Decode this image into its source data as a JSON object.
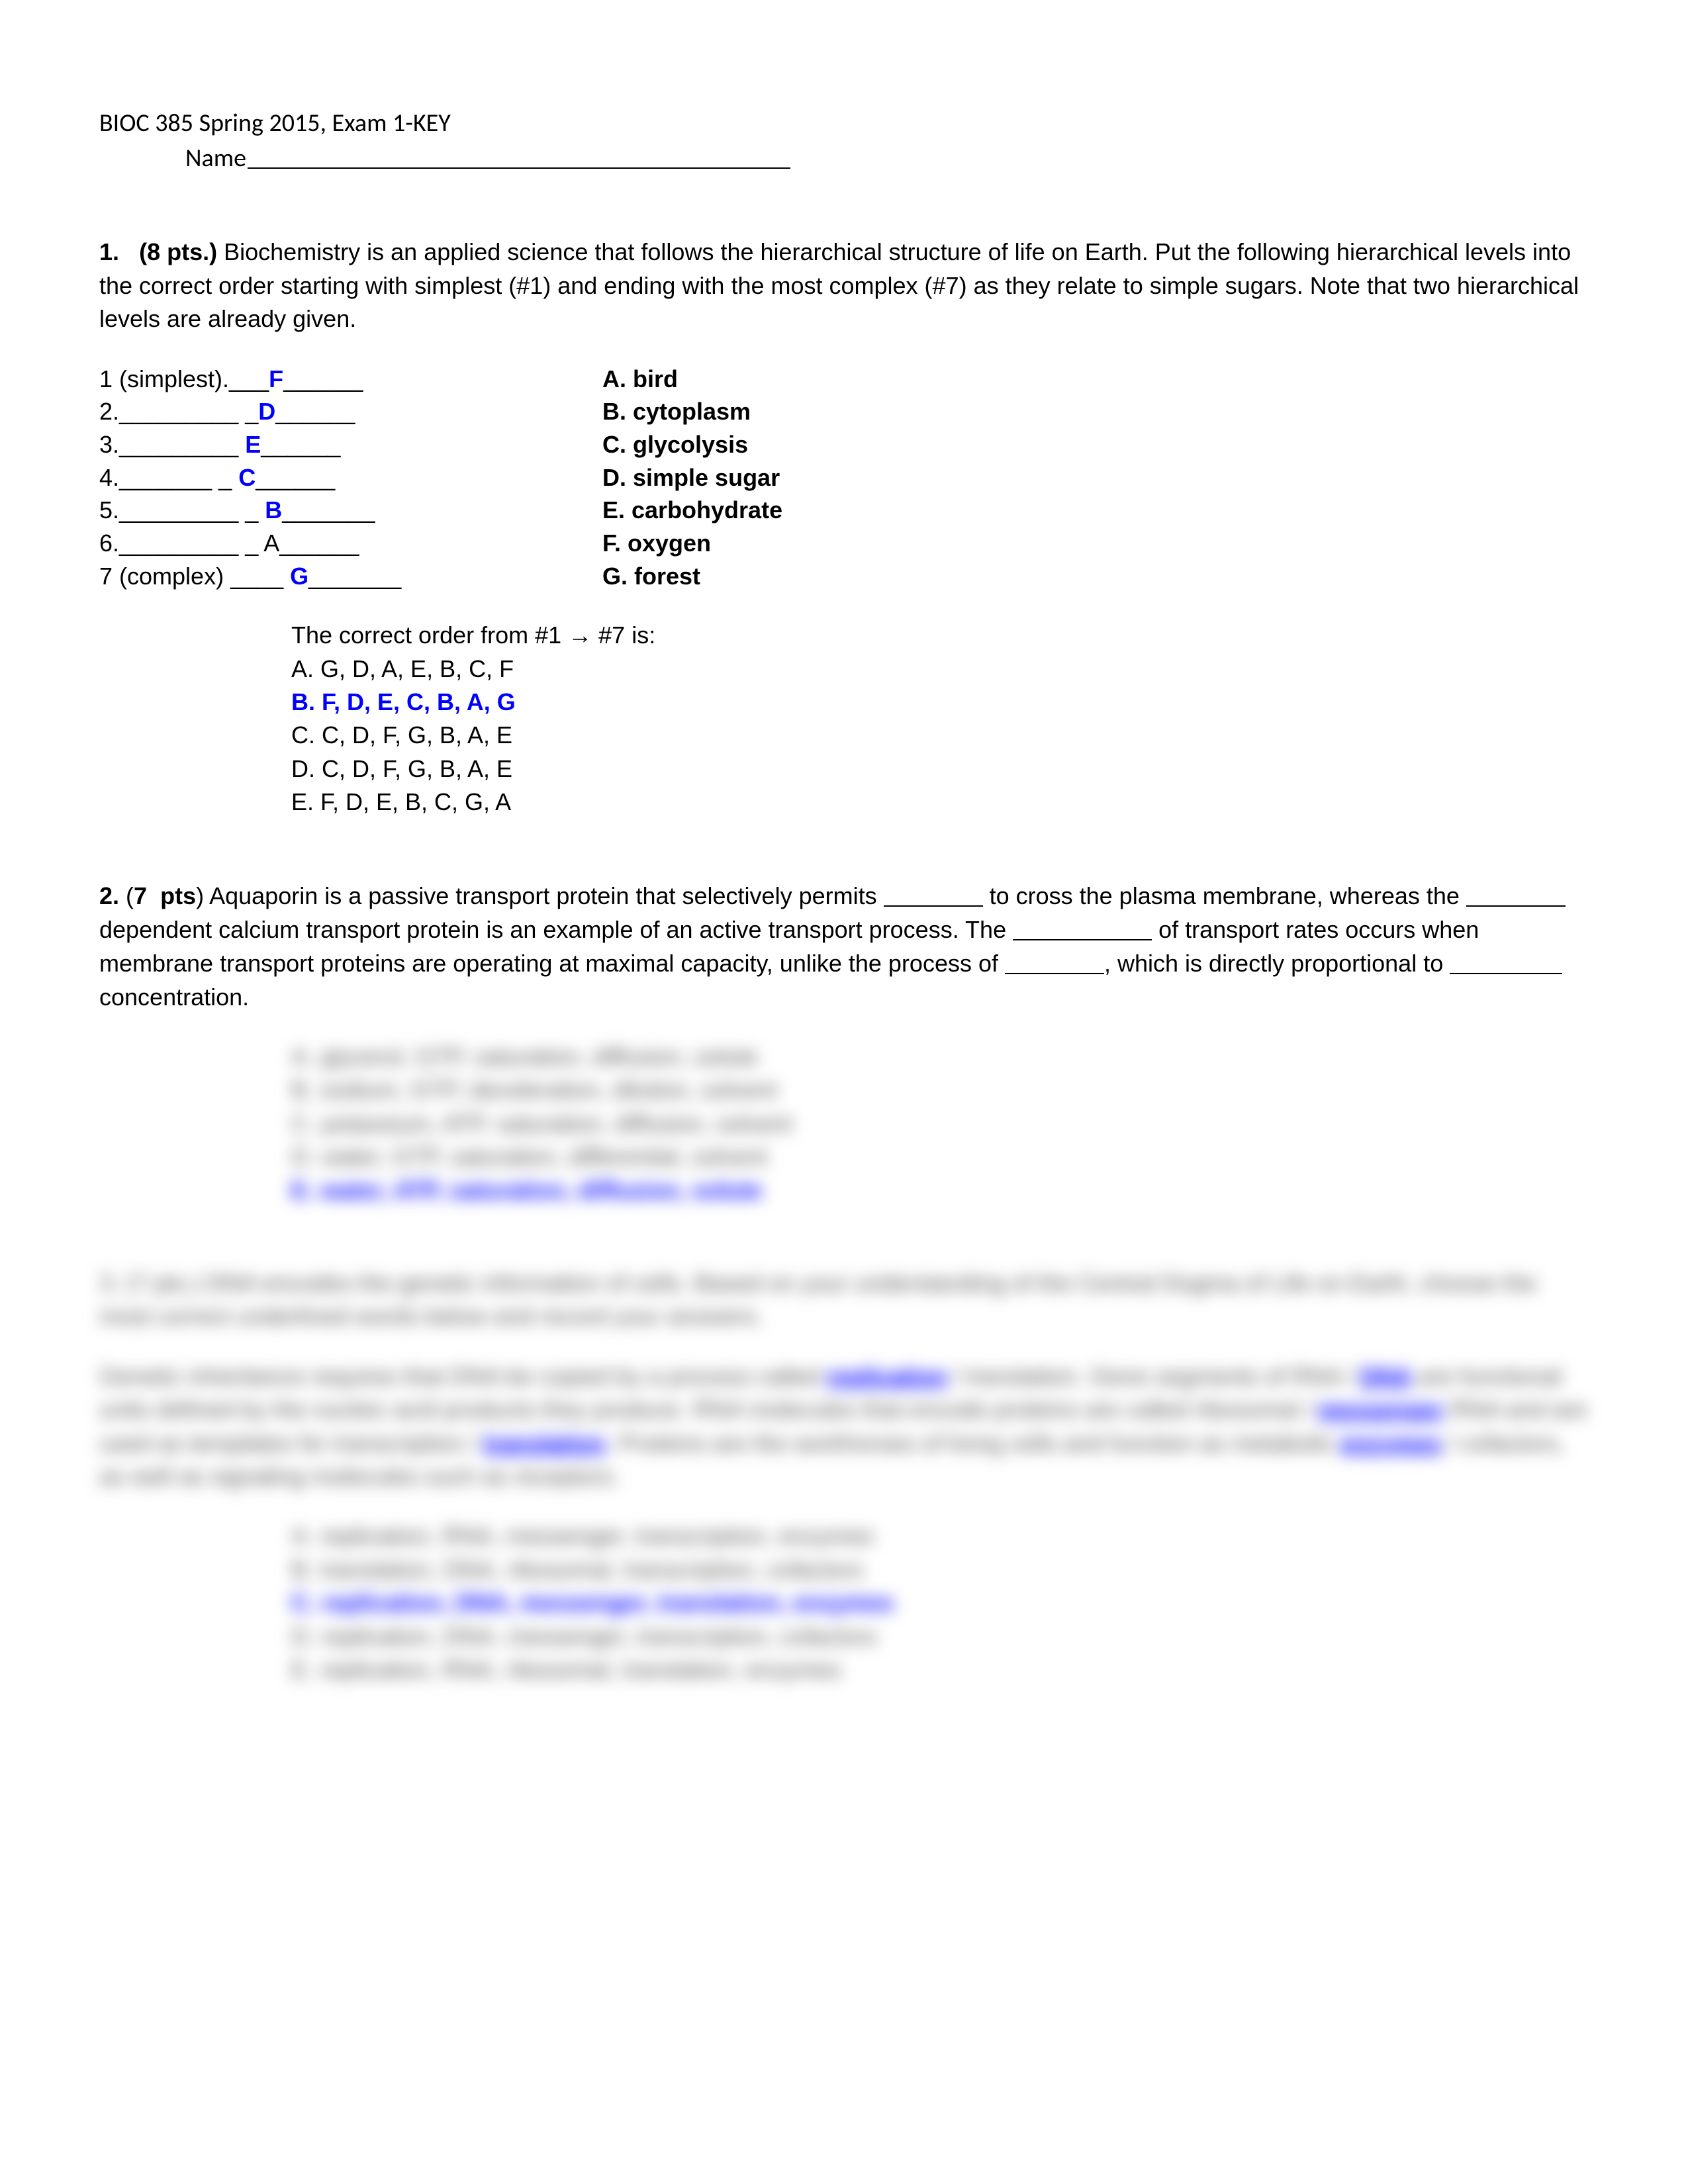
{
  "header": {
    "course_line": "BIOC 385 Spring 2015, Exam 1-KEY",
    "name_label": "Name"
  },
  "q1": {
    "number": "1.",
    "points": "(8 pts.)",
    "prompt": " Biochemistry is an applied science that follows the hierarchical structure of life on Earth.  Put the following hierarchical levels into the correct order starting with simplest (#1) and ending with the most complex (#7) as they relate to simple sugars.  Note that two hierarchical levels are already given.",
    "hierarchy_rows": [
      {
        "left_pre": "1 (simplest).___",
        "ans": "F",
        "left_post": "______",
        "right": "A. bird"
      },
      {
        "left_pre": "2._________ _",
        "ans": "D",
        "left_post": "______",
        "right": "B. cytoplasm"
      },
      {
        "left_pre": "3._________ ",
        "ans": "E",
        "left_post": "______",
        "right": "C. glycolysis"
      },
      {
        "left_pre": "4._______ _ ",
        "ans": "C",
        "left_post": "______",
        "right": "D. simple sugar"
      },
      {
        "left_pre": "5._________ _ ",
        "ans": "B",
        "left_post": "_______",
        "right": "E. carbohydrate"
      },
      {
        "left_pre": "6._________ _ A",
        "ans": "",
        "left_post": "______",
        "right": "F. oxygen"
      },
      {
        "left_pre": "7 (complex) ____ ",
        "ans": "G",
        "left_post": "_______",
        "right": "G. forest"
      }
    ],
    "order_line_pre": "The correct order from #1 ",
    "arrow": "→",
    "order_line_post": " #7 is:",
    "options": [
      {
        "text": "A.  G, D, A, E, B, C, F",
        "correct": false
      },
      {
        "text": "B.  F, D, E, C, B, A, G",
        "correct": true
      },
      {
        "text": "C.  C, D, F, G, B, A, E",
        "correct": false
      },
      {
        "text": "D.  C, D, F, G, B, A, E",
        "correct": false
      },
      {
        "text": "E.  F, D, E, B, C, G, A",
        "correct": false
      }
    ]
  },
  "q2": {
    "number": "2.",
    "points": "(7  pts)",
    "text_parts": [
      " Aquaporin is a passive transport protein that selectively permits ",
      " to cross the plasma membrane, whereas the ",
      " dependent calcium transport protein is an example of an active transport process. The ",
      " of transport rates occurs when membrane transport proteins are operating at maximal capacity, unlike the process of ",
      ", which is directly proportional to ",
      " concentration."
    ],
    "blurred_options": [
      "A. glycerol, GTP, saturation, diffusion, solute",
      "B. sodium, GTP, deceleration, dilution, solvent",
      "C. potassium, ATP, saturation, diffusion, solvent",
      "D. water, GTP, saturation, differential, solvent",
      "E. water, ATP, saturation, diffusion, solute"
    ],
    "correct_index": 4
  },
  "q3_blur": {
    "para1": "3. (7 pts.) DNA encodes the genetic information of cells. Based on your understanding of the Central Dogma of Life on Earth, choose the most correct underlined words below and record your answers.",
    "para2_parts": [
      "Genetic inheritance requires that DNA be copied by a process called ",
      "replication",
      " / translation. Gene segments of RNA / ",
      "DNA",
      " are functional units defined by the nucleic acid products they produce. RNA molecules that encode proteins are called ribosomal / ",
      "messenger",
      " RNA and are used as templates for transcription / ",
      "translation",
      ". Proteins are the workhorses of living cells and function as metabolic ",
      "enzymes",
      " / cofactors, as well as signaling molecules such as receptors."
    ],
    "options": [
      "A. replication, RNA, messenger, transcription, enzymes",
      "B. translation, DNA, ribosomal, transcription, cofactors",
      "C. replication, DNA, messenger, translation, enzymes",
      "D. replication, DNA, messenger, transcription, cofactors",
      "E. replication, RNA, ribosomal, translation, enzymes"
    ],
    "correct_index": 2
  },
  "colors": {
    "text": "#000000",
    "answer_blue": "#0000ff",
    "background": "#ffffff"
  }
}
